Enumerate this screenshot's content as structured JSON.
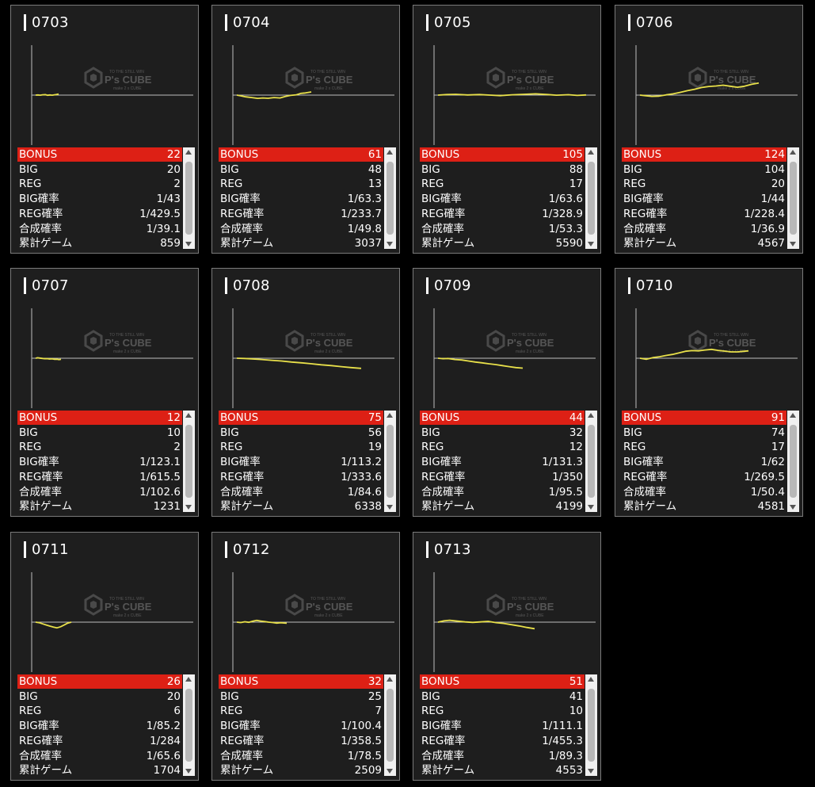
{
  "colors": {
    "background": "#000000",
    "card": "#1e1e1e",
    "line": "#e8e04a",
    "highlight": "#dd2015"
  },
  "watermark": {
    "brand": "P's CUBE",
    "subtitle": "make 2 x CUBE",
    "tagline": "TO THE STILL WIN"
  },
  "stat_labels": {
    "bonus": "BONUS",
    "big": "BIG",
    "reg": "REG",
    "big_rate": "BIG確率",
    "reg_rate": "REG確率",
    "combined_rate": "合成確率",
    "total_games": "累計ゲーム"
  },
  "machines": [
    {
      "id": "0703",
      "bonus": "22",
      "big": "20",
      "reg": "2",
      "big_rate": "1/43",
      "reg_rate": "1/429.5",
      "combined_rate": "1/39.1",
      "total_games": "859",
      "line": [
        [
          0,
          0
        ],
        [
          0.1,
          0.02
        ],
        [
          0.2,
          -0.01
        ],
        [
          0.3,
          0.03
        ],
        [
          0.42,
          0.05
        ],
        [
          0.52,
          -0.02
        ],
        [
          0.62,
          0.02
        ],
        [
          0.72,
          -0.01
        ],
        [
          0.82,
          0.03
        ],
        [
          0.9,
          0.06
        ],
        [
          1,
          0.12
        ]
      ]
    },
    {
      "id": "0704",
      "bonus": "61",
      "big": "48",
      "reg": "13",
      "big_rate": "1/63.3",
      "reg_rate": "1/233.7",
      "combined_rate": "1/49.8",
      "total_games": "3037",
      "line": [
        [
          0,
          0
        ],
        [
          0.05,
          -0.05
        ],
        [
          0.12,
          -0.12
        ],
        [
          0.2,
          -0.17
        ],
        [
          0.28,
          -0.23
        ],
        [
          0.35,
          -0.2
        ],
        [
          0.42,
          -0.22
        ],
        [
          0.5,
          -0.17
        ],
        [
          0.58,
          -0.2
        ],
        [
          0.65,
          -0.1
        ],
        [
          0.72,
          -0.02
        ],
        [
          0.8,
          0.02
        ],
        [
          0.86,
          0.12
        ],
        [
          0.92,
          0.15
        ],
        [
          1,
          0.22
        ]
      ]
    },
    {
      "id": "0705",
      "bonus": "105",
      "big": "88",
      "reg": "17",
      "big_rate": "1/63.6",
      "reg_rate": "1/328.9",
      "combined_rate": "1/53.3",
      "total_games": "5590",
      "line": [
        [
          0,
          0
        ],
        [
          0.06,
          0.06
        ],
        [
          0.12,
          0.08
        ],
        [
          0.2,
          0.02
        ],
        [
          0.28,
          0.06
        ],
        [
          0.35,
          0.0
        ],
        [
          0.42,
          -0.06
        ],
        [
          0.5,
          0.03
        ],
        [
          0.58,
          0.08
        ],
        [
          0.66,
          0.13
        ],
        [
          0.74,
          0.06
        ],
        [
          0.8,
          -0.01
        ],
        [
          0.88,
          0.04
        ],
        [
          0.94,
          -0.03
        ],
        [
          1,
          0.02
        ]
      ]
    },
    {
      "id": "0706",
      "bonus": "124",
      "big": "104",
      "reg": "20",
      "big_rate": "1/44",
      "reg_rate": "1/228.4",
      "combined_rate": "1/36.9",
      "total_games": "4567",
      "line": [
        [
          0,
          0
        ],
        [
          0.05,
          -0.05
        ],
        [
          0.1,
          -0.1
        ],
        [
          0.16,
          -0.08
        ],
        [
          0.22,
          0.02
        ],
        [
          0.28,
          0.1
        ],
        [
          0.34,
          0.22
        ],
        [
          0.4,
          0.35
        ],
        [
          0.46,
          0.46
        ],
        [
          0.52,
          0.6
        ],
        [
          0.58,
          0.68
        ],
        [
          0.64,
          0.72
        ],
        [
          0.7,
          0.78
        ],
        [
          0.76,
          0.7
        ],
        [
          0.82,
          0.62
        ],
        [
          0.88,
          0.7
        ],
        [
          0.94,
          0.85
        ],
        [
          1,
          0.95
        ]
      ]
    },
    {
      "id": "0707",
      "bonus": "12",
      "big": "10",
      "reg": "2",
      "big_rate": "1/123.1",
      "reg_rate": "1/615.5",
      "combined_rate": "1/102.6",
      "total_games": "1231",
      "line": [
        [
          0,
          0
        ],
        [
          0.08,
          0.05
        ],
        [
          0.16,
          0.02
        ],
        [
          0.25,
          -0.02
        ],
        [
          0.35,
          -0.05
        ],
        [
          0.45,
          -0.04
        ],
        [
          0.55,
          -0.08
        ],
        [
          0.65,
          -0.06
        ],
        [
          0.75,
          -0.12
        ],
        [
          0.85,
          -0.1
        ],
        [
          0.92,
          -0.14
        ],
        [
          1,
          -0.12
        ]
      ]
    },
    {
      "id": "0708",
      "bonus": "75",
      "big": "56",
      "reg": "19",
      "big_rate": "1/113.2",
      "reg_rate": "1/333.6",
      "combined_rate": "1/84.6",
      "total_games": "6338",
      "line": [
        [
          0,
          0
        ],
        [
          0.06,
          -0.02
        ],
        [
          0.12,
          -0.05
        ],
        [
          0.2,
          -0.1
        ],
        [
          0.28,
          -0.16
        ],
        [
          0.36,
          -0.22
        ],
        [
          0.44,
          -0.3
        ],
        [
          0.52,
          -0.36
        ],
        [
          0.6,
          -0.44
        ],
        [
          0.68,
          -0.52
        ],
        [
          0.76,
          -0.58
        ],
        [
          0.84,
          -0.66
        ],
        [
          0.92,
          -0.74
        ],
        [
          1,
          -0.8
        ]
      ]
    },
    {
      "id": "0709",
      "bonus": "44",
      "big": "32",
      "reg": "12",
      "big_rate": "1/131.3",
      "reg_rate": "1/350",
      "combined_rate": "1/95.5",
      "total_games": "4199",
      "line": [
        [
          0,
          0
        ],
        [
          0.06,
          -0.04
        ],
        [
          0.12,
          -0.02
        ],
        [
          0.2,
          -0.1
        ],
        [
          0.28,
          -0.14
        ],
        [
          0.36,
          -0.22
        ],
        [
          0.44,
          -0.3
        ],
        [
          0.52,
          -0.36
        ],
        [
          0.6,
          -0.44
        ],
        [
          0.68,
          -0.5
        ],
        [
          0.76,
          -0.58
        ],
        [
          0.84,
          -0.66
        ],
        [
          0.92,
          -0.74
        ],
        [
          1,
          -0.78
        ]
      ]
    },
    {
      "id": "0710",
      "bonus": "91",
      "big": "74",
      "reg": "17",
      "big_rate": "1/62",
      "reg_rate": "1/269.5",
      "combined_rate": "1/50.4",
      "total_games": "4581",
      "line": [
        [
          0,
          0
        ],
        [
          0.06,
          -0.08
        ],
        [
          0.12,
          0.05
        ],
        [
          0.18,
          0.12
        ],
        [
          0.24,
          0.22
        ],
        [
          0.3,
          0.3
        ],
        [
          0.36,
          0.42
        ],
        [
          0.42,
          0.55
        ],
        [
          0.48,
          0.6
        ],
        [
          0.54,
          0.58
        ],
        [
          0.6,
          0.65
        ],
        [
          0.66,
          0.7
        ],
        [
          0.72,
          0.62
        ],
        [
          0.78,
          0.56
        ],
        [
          0.84,
          0.5
        ],
        [
          0.9,
          0.5
        ],
        [
          1,
          0.58
        ]
      ]
    },
    {
      "id": "0711",
      "bonus": "26",
      "big": "20",
      "reg": "6",
      "big_rate": "1/85.2",
      "reg_rate": "1/284",
      "combined_rate": "1/65.6",
      "total_games": "1704",
      "line": [
        [
          0,
          0
        ],
        [
          0.1,
          -0.06
        ],
        [
          0.2,
          -0.18
        ],
        [
          0.3,
          -0.3
        ],
        [
          0.4,
          -0.42
        ],
        [
          0.5,
          -0.52
        ],
        [
          0.6,
          -0.6
        ],
        [
          0.7,
          -0.48
        ],
        [
          0.8,
          -0.3
        ],
        [
          0.9,
          -0.1
        ],
        [
          1,
          0.0
        ]
      ]
    },
    {
      "id": "0712",
      "bonus": "32",
      "big": "25",
      "reg": "7",
      "big_rate": "1/100.4",
      "reg_rate": "1/358.5",
      "combined_rate": "1/78.5",
      "total_games": "2509",
      "line": [
        [
          0,
          0
        ],
        [
          0.08,
          -0.04
        ],
        [
          0.16,
          0.04
        ],
        [
          0.24,
          -0.02
        ],
        [
          0.32,
          0.1
        ],
        [
          0.4,
          0.18
        ],
        [
          0.48,
          0.12
        ],
        [
          0.56,
          0.06
        ],
        [
          0.64,
          0.0
        ],
        [
          0.72,
          -0.04
        ],
        [
          0.8,
          -0.1
        ],
        [
          0.88,
          -0.06
        ],
        [
          1,
          -0.12
        ]
      ]
    },
    {
      "id": "0713",
      "bonus": "51",
      "big": "41",
      "reg": "10",
      "big_rate": "1/111.1",
      "reg_rate": "1/455.3",
      "combined_rate": "1/89.3",
      "total_games": "4553",
      "line": [
        [
          0,
          0
        ],
        [
          0.06,
          0.1
        ],
        [
          0.12,
          0.15
        ],
        [
          0.2,
          0.08
        ],
        [
          0.28,
          0.02
        ],
        [
          0.36,
          -0.02
        ],
        [
          0.44,
          0.02
        ],
        [
          0.52,
          0.06
        ],
        [
          0.6,
          -0.04
        ],
        [
          0.68,
          -0.1
        ],
        [
          0.76,
          -0.2
        ],
        [
          0.84,
          -0.3
        ],
        [
          0.92,
          -0.42
        ],
        [
          1,
          -0.52
        ]
      ]
    }
  ]
}
